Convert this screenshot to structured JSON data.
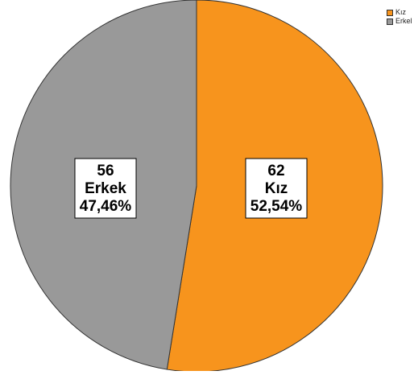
{
  "chart_data": {
    "type": "pie",
    "title": "",
    "slices": [
      {
        "name": "Kız",
        "count": "62",
        "value": 52.54,
        "percent_label": "52,54%",
        "color": "#f7941d"
      },
      {
        "name": "Erkek",
        "count": "56",
        "value": 47.46,
        "percent_label": "47,46%",
        "color": "#999999"
      }
    ],
    "legend": {
      "placement": "top-right",
      "items": [
        {
          "label": "Kız",
          "color": "#f7941d"
        },
        {
          "label": "Erkel",
          "color": "#999999"
        }
      ]
    },
    "stroke_color": "#333333",
    "label_box_color": "#ffffff"
  }
}
